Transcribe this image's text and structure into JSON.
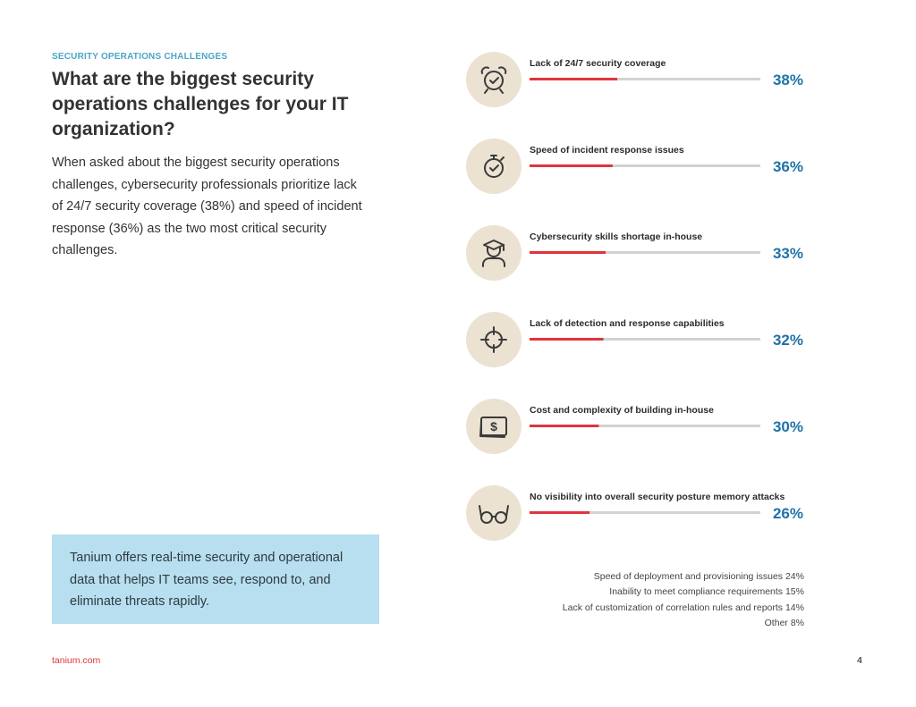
{
  "section_label": "SECURITY OPERATIONS CHALLENGES",
  "title": "What are the biggest security operations challenges for your IT organization?",
  "intro": "When asked about the biggest security operations challenges, cybersecurity professionals prioritize lack of 24/7 security coverage (38%) and speed of incident response (36%) as the two most critical security challenges.",
  "callout": "Tanium offers real-time security and operational data that helps IT teams see, respond to, and eliminate threats rapidly.",
  "footer": {
    "site": "tanium.com",
    "page": "4"
  },
  "colors": {
    "accent_red": "#e0343c",
    "accent_blue": "#1f72a8",
    "track": "#d2d2d2",
    "icon_bg": "#ece2d2",
    "icon_stroke": "#3b3b3b"
  },
  "chart_data": {
    "type": "bar",
    "orientation": "horizontal",
    "value_unit": "%",
    "categories": [
      "Lack of 24/7 security coverage",
      "Speed of incident response issues",
      "Cybersecurity skills shortage in-house",
      "Lack of detection and response capabilities",
      "Cost and complexity of building in-house",
      "No visibility into overall security posture memory attacks"
    ],
    "values": [
      38,
      36,
      33,
      32,
      30,
      26
    ],
    "value_labels": [
      "38%",
      "36%",
      "33%",
      "32%",
      "30%",
      "26%"
    ],
    "icons": [
      "alarm-clock-icon",
      "stopwatch-icon",
      "graduate-icon",
      "crosshair-icon",
      "money-icon",
      "glasses-icon"
    ],
    "xlim": [
      0,
      100
    ],
    "other_responses": [
      "Speed of deployment and provisioning issues 24%",
      "Inability to meet compliance requirements 15%",
      "Lack of customization of correlation rules and reports 14%",
      "Other 8%"
    ]
  }
}
